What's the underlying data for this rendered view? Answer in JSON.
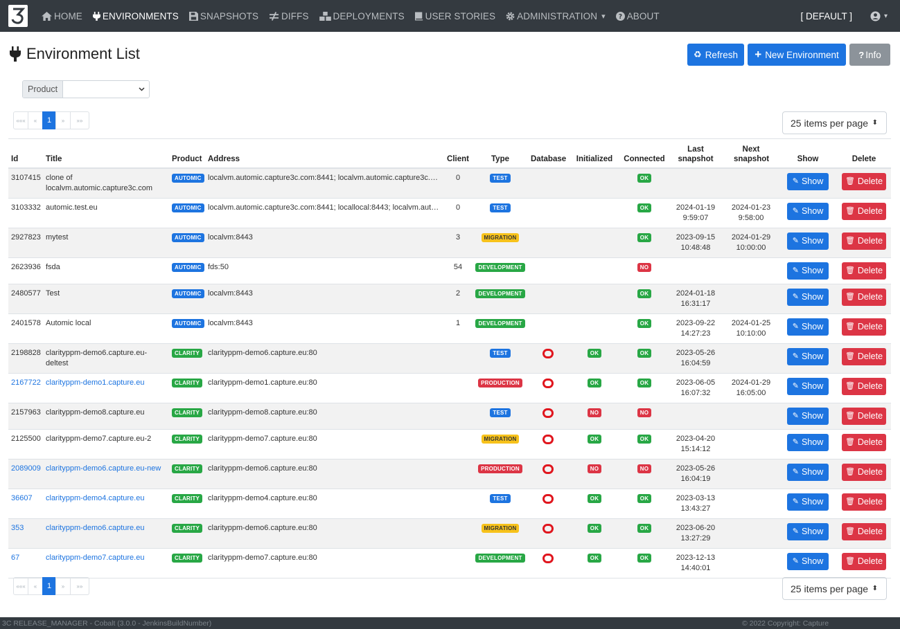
{
  "nav": {
    "items": [
      {
        "key": "home",
        "label": "HOME",
        "icon": "home-icon",
        "active": false
      },
      {
        "key": "environments",
        "label": "ENVIRONMENTS",
        "icon": "plug-icon",
        "active": true
      },
      {
        "key": "snapshots",
        "label": "SNAPSHOTS",
        "icon": "save-icon",
        "active": false
      },
      {
        "key": "diffs",
        "label": "DIFFS",
        "icon": "not-equal-icon",
        "active": false
      },
      {
        "key": "deployments",
        "label": "DEPLOYMENTS",
        "icon": "boxes-icon",
        "active": false
      },
      {
        "key": "user_stories",
        "label": "USER STORIES",
        "icon": "book-icon",
        "active": false
      },
      {
        "key": "administration",
        "label": "ADMINISTRATION",
        "icon": "gear-icon",
        "active": false
      },
      {
        "key": "about",
        "label": "ABOUT",
        "icon": "question-circle-icon",
        "active": false
      }
    ],
    "admin_caret": "▾",
    "profile": "[ DEFAULT ]",
    "user_caret": "▾"
  },
  "header": {
    "title": "Environment List",
    "refresh_label": "Refresh",
    "new_label": "New Environment",
    "info_label": "Info"
  },
  "filter": {
    "label": "Product",
    "value": ""
  },
  "pagination": {
    "first": "«««",
    "prev": "«",
    "page": "1",
    "next": "»",
    "last": "»»"
  },
  "per_page": "25 items per page",
  "table": {
    "columns": [
      "Id",
      "Title",
      "Product",
      "Address",
      "Client",
      "Type",
      "Database",
      "Initialized",
      "Connected",
      "Last snapshot",
      "Next snapshot",
      "Show",
      "Delete"
    ],
    "show_label": "Show",
    "delete_label": "Delete",
    "rows": [
      {
        "id": "3107415",
        "title": "clone of localvm.automic.capture3c.com",
        "product": "AUTOMIC",
        "address": "localvm.automic.capture3c.com:8441; localvm.automic.capture3c.co...",
        "client": "0",
        "type": "TEST",
        "database": "",
        "initialized": "",
        "connected": "OK",
        "last": "",
        "next": "",
        "link": false
      },
      {
        "id": "3103332",
        "title": "automic.test.eu",
        "product": "AUTOMIC",
        "address": "localvm.automic.capture3c.com:8441; locallocal:8443; localvm.auto...",
        "client": "0",
        "type": "TEST",
        "database": "",
        "initialized": "",
        "connected": "OK",
        "last": "2024-01-19 9:59:07",
        "next": "2024-01-23 9:58:00",
        "link": false
      },
      {
        "id": "2927823",
        "title": "mytest",
        "product": "AUTOMIC",
        "address": "localvm:8443",
        "client": "3",
        "type": "MIGRATION",
        "database": "",
        "initialized": "",
        "connected": "OK",
        "last": "2023-09-15 10:48:48",
        "next": "2024-01-29 10:00:00",
        "link": false
      },
      {
        "id": "2623936",
        "title": "fsda",
        "product": "AUTOMIC",
        "address": "fds:50",
        "client": "54",
        "type": "DEVELOPMENT",
        "database": "",
        "initialized": "",
        "connected": "NO",
        "last": "",
        "next": "",
        "link": false
      },
      {
        "id": "2480577",
        "title": "Test",
        "product": "AUTOMIC",
        "address": "localvm:8443",
        "client": "2",
        "type": "DEVELOPMENT",
        "database": "",
        "initialized": "",
        "connected": "OK",
        "last": "2024-01-18 16:31:17",
        "next": "",
        "link": false
      },
      {
        "id": "2401578",
        "title": "Automic local",
        "product": "AUTOMIC",
        "address": "localvm:8443",
        "client": "1",
        "type": "DEVELOPMENT",
        "database": "",
        "initialized": "",
        "connected": "OK",
        "last": "2023-09-22 14:27:23",
        "next": "2024-01-25 10:10:00",
        "link": false
      },
      {
        "id": "2198828",
        "title": "clarityppm-demo6.capture.eu-deltest",
        "product": "CLARITY",
        "address": "clarityppm-demo6.capture.eu:80",
        "client": "",
        "type": "TEST",
        "database": "oracle",
        "initialized": "OK",
        "connected": "OK",
        "last": "2023-05-26 16:04:59",
        "next": "",
        "link": false
      },
      {
        "id": "2167722",
        "title": "clarityppm-demo1.capture.eu",
        "product": "CLARITY",
        "address": "clarityppm-demo1.capture.eu:80",
        "client": "",
        "type": "PRODUCTION",
        "database": "oracle",
        "initialized": "OK",
        "connected": "OK",
        "last": "2023-06-05 16:07:32",
        "next": "2024-01-29 16:05:00",
        "link": true
      },
      {
        "id": "2157963",
        "title": "clarityppm-demo8.capture.eu",
        "product": "CLARITY",
        "address": "clarityppm-demo8.capture.eu:80",
        "client": "",
        "type": "TEST",
        "database": "oracle",
        "initialized": "NO",
        "connected": "NO",
        "last": "",
        "next": "",
        "link": false
      },
      {
        "id": "2125500",
        "title": "clarityppm-demo7.capture.eu-2",
        "product": "CLARITY",
        "address": "clarityppm-demo7.capture.eu:80",
        "client": "",
        "type": "MIGRATION",
        "database": "oracle",
        "initialized": "OK",
        "connected": "OK",
        "last": "2023-04-20 15:14:12",
        "next": "",
        "link": false
      },
      {
        "id": "2089009",
        "title": "clarityppm-demo6.capture.eu-new",
        "product": "CLARITY",
        "address": "clarityppm-demo6.capture.eu:80",
        "client": "",
        "type": "PRODUCTION",
        "database": "oracle",
        "initialized": "NO",
        "connected": "NO",
        "last": "2023-05-26 16:04:19",
        "next": "",
        "link": true
      },
      {
        "id": "36607",
        "title": "clarityppm-demo4.capture.eu",
        "product": "CLARITY",
        "address": "clarityppm-demo4.capture.eu:80",
        "client": "",
        "type": "TEST",
        "database": "oracle",
        "initialized": "OK",
        "connected": "OK",
        "last": "2023-03-13 13:43:27",
        "next": "",
        "link": true
      },
      {
        "id": "353",
        "title": "clarityppm-demo6.capture.eu",
        "product": "CLARITY",
        "address": "clarityppm-demo6.capture.eu:80",
        "client": "",
        "type": "MIGRATION",
        "database": "oracle",
        "initialized": "OK",
        "connected": "OK",
        "last": "2023-06-20 13:27:29",
        "next": "",
        "link": true
      },
      {
        "id": "67",
        "title": "clarityppm-demo7.capture.eu",
        "product": "CLARITY",
        "address": "clarityppm-demo7.capture.eu:80",
        "client": "",
        "type": "DEVELOPMENT",
        "database": "oracle",
        "initialized": "OK",
        "connected": "OK",
        "last": "2023-12-13 14:40:01",
        "next": "",
        "link": true
      }
    ]
  },
  "footer": {
    "left": "3C RELEASE_MANAGER - Cobalt (3.0.0 - JenkinsBuildNumber)",
    "right": "© 2022 Copyright: Capture"
  }
}
